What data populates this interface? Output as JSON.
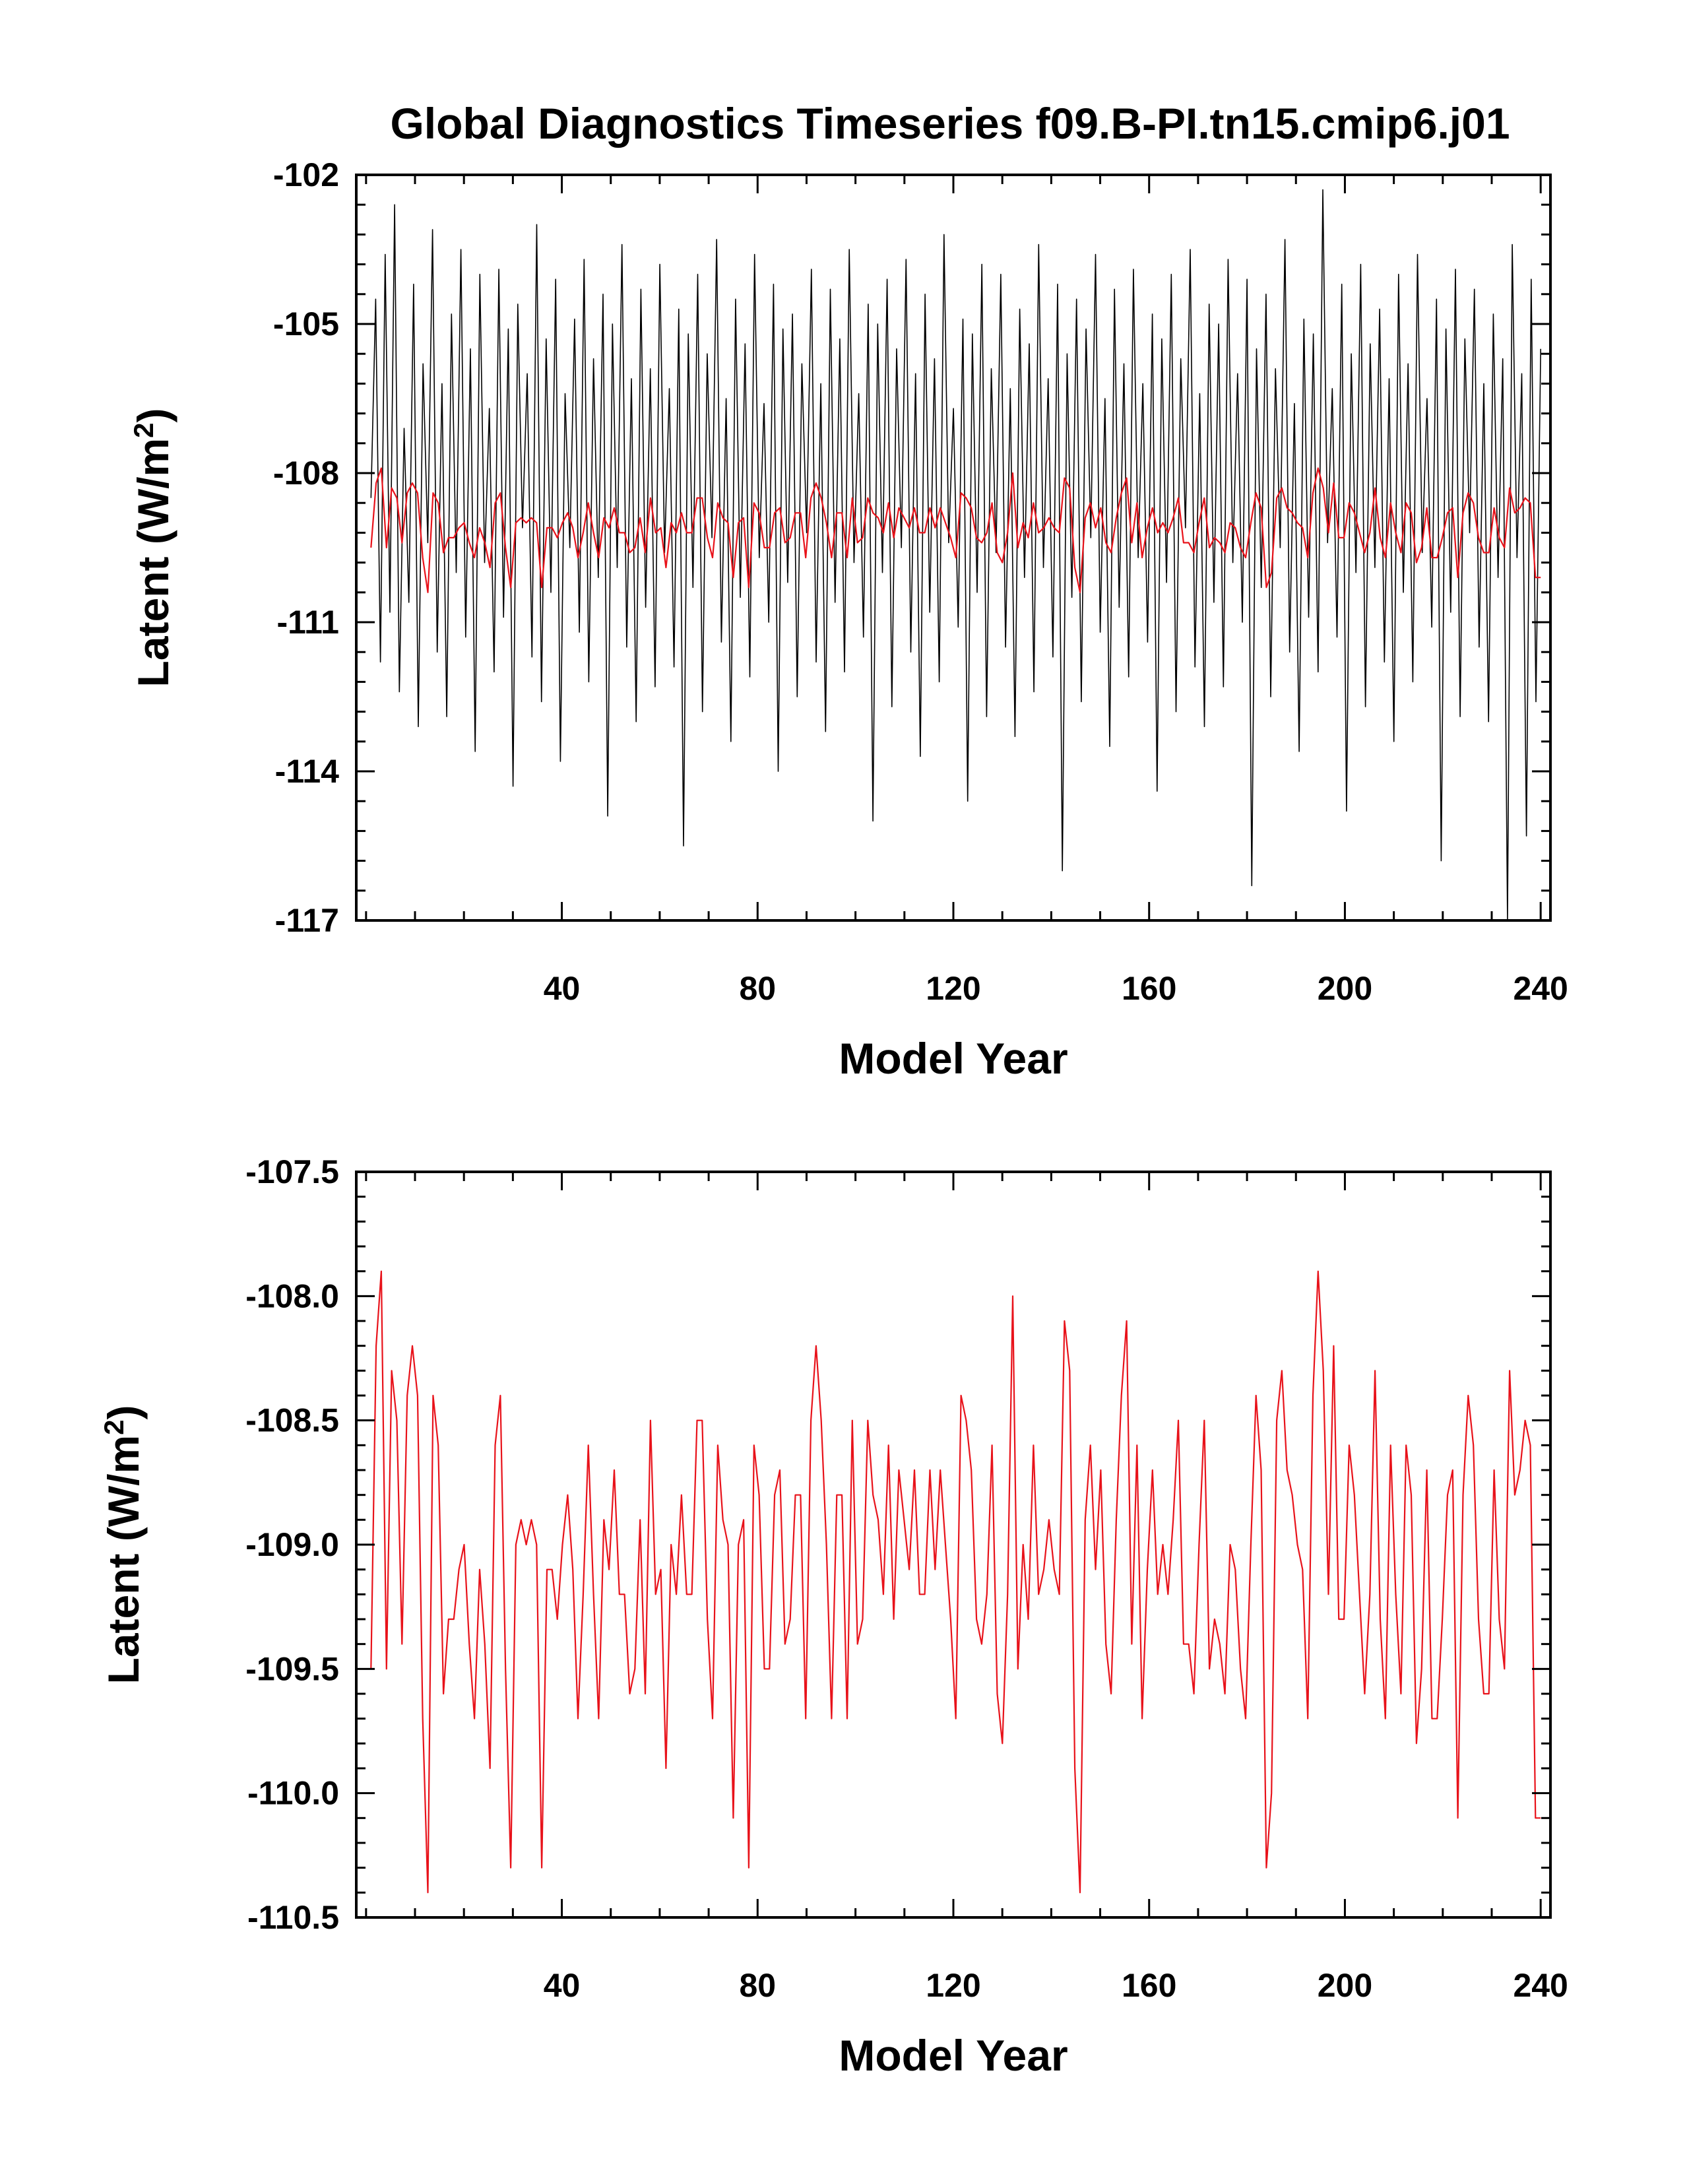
{
  "title": "Global Diagnostics Timeseries f09.B-PI.tn15.cmip6.j01",
  "colors": {
    "monthly": "#000000",
    "annual": "#e8121a"
  },
  "chart_data": [
    {
      "type": "line",
      "panel": "top",
      "xlabel": "Model Year",
      "ylabel_main": "Latent (W/m",
      "ylabel_sup": "2",
      "ylabel_end": ")",
      "xlim": [
        -2,
        242
      ],
      "ylim": [
        -117,
        -102
      ],
      "xticks": [
        40,
        80,
        120,
        160,
        200,
        240
      ],
      "xtick_labels": [
        "40",
        "80",
        "120",
        "160",
        "200",
        "240"
      ],
      "yticks": [
        -117,
        -114,
        -111,
        -108,
        -105,
        -102
      ],
      "ytick_labels": [
        "-117",
        "-114",
        "-111",
        "-108",
        "-105",
        "-102"
      ],
      "series": [
        {
          "color": "#000000",
          "values": [
            -108.5,
            -104.5,
            -111.8,
            -103.6,
            -110.8,
            -102.6,
            -112.4,
            -107.1,
            -110.6,
            -104.2,
            -113.1,
            -105.8,
            -109.4,
            -103.1,
            -111.6,
            -106.2,
            -112.9,
            -104.8,
            -110.0,
            -103.5,
            -111.3,
            -105.5,
            -113.6,
            -104.0,
            -109.8,
            -106.7,
            -112.0,
            -103.9,
            -110.9,
            -105.1,
            -114.3,
            -104.6,
            -109.1,
            -106.0,
            -111.7,
            -103.0,
            -112.6,
            -105.3,
            -110.4,
            -104.1,
            -113.8,
            -106.4,
            -109.5,
            -104.9,
            -111.2,
            -103.7,
            -112.2,
            -105.7,
            -110.1,
            -104.4,
            -114.9,
            -105.0,
            -109.9,
            -103.4,
            -111.5,
            -106.1,
            -113.0,
            -104.3,
            -110.7,
            -105.9,
            -112.3,
            -103.8,
            -109.6,
            -106.3,
            -111.9,
            -104.7,
            -115.5,
            -105.2,
            -110.3,
            -104.0,
            -112.8,
            -105.6,
            -109.3,
            -103.3,
            -111.4,
            -106.5,
            -113.4,
            -104.5,
            -110.5,
            -105.4,
            -112.1,
            -103.6,
            -109.7,
            -106.6,
            -111.0,
            -104.2,
            -114.0,
            -105.1,
            -110.2,
            -104.8,
            -112.5,
            -105.8,
            -109.2,
            -103.9,
            -111.8,
            -106.2,
            -113.2,
            -104.3,
            -110.6,
            -105.3,
            -112.0,
            -103.5,
            -109.8,
            -106.4,
            -111.3,
            -104.6,
            -115.0,
            -105.0,
            -110.0,
            -104.1,
            -112.7,
            -105.5,
            -109.5,
            -103.7,
            -111.6,
            -106.0,
            -113.7,
            -104.4,
            -110.8,
            -105.7,
            -112.2,
            -103.2,
            -109.4,
            -106.7,
            -111.1,
            -104.9,
            -114.6,
            -105.2,
            -110.4,
            -103.8,
            -112.9,
            -105.9,
            -109.6,
            -104.0,
            -111.5,
            -106.3,
            -113.3,
            -104.7,
            -110.1,
            -105.4,
            -112.4,
            -103.4,
            -109.9,
            -106.1,
            -111.7,
            -104.2,
            -116.0,
            -105.6,
            -110.5,
            -104.5,
            -112.6,
            -105.1,
            -109.3,
            -103.6,
            -111.2,
            -106.5,
            -113.5,
            -104.3,
            -110.7,
            -105.8,
            -112.1,
            -103.9,
            -109.7,
            -106.2,
            -111.4,
            -104.8,
            -114.4,
            -105.3,
            -110.2,
            -104.0,
            -112.8,
            -105.7,
            -109.1,
            -103.5,
            -111.9,
            -106.4,
            -113.1,
            -104.6,
            -110.6,
            -105.0,
            -112.3,
            -103.7,
            -109.8,
            -106.0,
            -111.0,
            -104.1,
            -116.3,
            -105.5,
            -110.3,
            -104.4,
            -112.5,
            -105.9,
            -109.5,
            -103.3,
            -111.6,
            -106.6,
            -113.6,
            -104.9,
            -110.9,
            -105.2,
            -112.0,
            -102.3,
            -109.4,
            -106.3,
            -111.3,
            -104.2,
            -114.8,
            -105.6,
            -110.0,
            -103.8,
            -112.7,
            -105.4,
            -109.9,
            -104.7,
            -111.8,
            -106.1,
            -113.4,
            -104.0,
            -110.4,
            -105.8,
            -112.2,
            -103.6,
            -109.6,
            -106.5,
            -111.1,
            -104.5,
            -115.8,
            -105.1,
            -110.8,
            -103.9,
            -112.9,
            -105.3,
            -109.2,
            -104.3,
            -111.5,
            -106.2,
            -113.0,
            -104.8,
            -110.1,
            -105.7,
            -117.0,
            -103.4,
            -109.7,
            -106.0,
            -115.3,
            -104.1,
            -112.6,
            -105.5
          ]
        },
        {
          "color": "#e8121a",
          "values": [
            -109.5,
            -108.2,
            -107.9,
            -109.5,
            -108.3,
            -108.5,
            -109.4,
            -108.4,
            -108.2,
            -108.4,
            -109.7,
            -110.4,
            -108.4,
            -108.6,
            -109.6,
            -109.3,
            -109.3,
            -109.1,
            -109.0,
            -109.4,
            -109.7,
            -109.1,
            -109.4,
            -109.9,
            -108.6,
            -108.4,
            -109.5,
            -110.3,
            -109.0,
            -108.9,
            -109.0,
            -108.9,
            -109.0,
            -110.3,
            -109.1,
            -109.1,
            -109.3,
            -109.0,
            -108.8,
            -109.1,
            -109.7,
            -109.2,
            -108.6,
            -109.2,
            -109.7,
            -108.9,
            -109.1,
            -108.7,
            -109.2,
            -109.2,
            -109.6,
            -109.5,
            -108.9,
            -109.6,
            -108.5,
            -109.2,
            -109.1,
            -109.9,
            -109.0,
            -109.2,
            -108.8,
            -109.2,
            -109.2,
            -108.5,
            -108.5,
            -109.3,
            -109.7,
            -108.6,
            -108.9,
            -109.0,
            -110.1,
            -109.0,
            -108.9,
            -110.3,
            -108.6,
            -108.8,
            -109.5,
            -109.5,
            -108.8,
            -108.7,
            -109.4,
            -109.3,
            -108.8,
            -108.8,
            -109.7,
            -108.5,
            -108.2,
            -108.5,
            -109.0,
            -109.7,
            -108.8,
            -108.8,
            -109.7,
            -108.5,
            -109.4,
            -109.3,
            -108.5,
            -108.8,
            -108.9,
            -109.2,
            -108.6,
            -109.3,
            -108.7,
            -108.9,
            -109.1,
            -108.7,
            -109.2,
            -109.2,
            -108.7,
            -109.1,
            -108.7,
            -109.0,
            -109.3,
            -109.7,
            -108.4,
            -108.5,
            -108.7,
            -109.3,
            -109.4,
            -109.2,
            -108.6,
            -109.6,
            -109.8,
            -109.2,
            -108.0,
            -109.5,
            -109.0,
            -109.3,
            -108.6,
            -109.2,
            -109.1,
            -108.9,
            -109.1,
            -109.2,
            -108.1,
            -108.3,
            -109.9,
            -110.4,
            -108.9,
            -108.6,
            -109.1,
            -108.7,
            -109.4,
            -109.6,
            -108.9,
            -108.4,
            -108.1,
            -109.4,
            -108.6,
            -109.7,
            -109.1,
            -108.7,
            -109.2,
            -109.0,
            -109.2,
            -108.9,
            -108.5,
            -109.4,
            -109.4,
            -109.6,
            -109.0,
            -108.5,
            -109.5,
            -109.3,
            -109.4,
            -109.6,
            -109.0,
            -109.1,
            -109.5,
            -109.7,
            -109.0,
            -108.4,
            -108.7,
            -110.3,
            -110.0,
            -108.5,
            -108.3,
            -108.7,
            -108.8,
            -109.0,
            -109.1,
            -109.7,
            -108.4,
            -107.9,
            -108.3,
            -109.2,
            -108.2,
            -109.3,
            -109.3,
            -108.6,
            -108.8,
            -109.2,
            -109.6,
            -109.2,
            -108.3,
            -109.3,
            -109.7,
            -108.6,
            -109.2,
            -109.6,
            -108.6,
            -108.8,
            -109.8,
            -109.5,
            -108.7,
            -109.7,
            -109.7,
            -109.3,
            -108.8,
            -108.7,
            -110.1,
            -108.8,
            -108.4,
            -108.6,
            -109.3,
            -109.6,
            -109.6,
            -108.7,
            -109.3,
            -109.5,
            -108.3,
            -108.8,
            -108.7,
            -108.5,
            -108.6,
            -110.1,
            -110.1
          ]
        }
      ]
    },
    {
      "type": "line",
      "panel": "bottom",
      "xlabel": "Model Year",
      "ylabel_main": "Latent (W/m",
      "ylabel_sup": "2",
      "ylabel_end": ")",
      "xlim": [
        -2,
        242
      ],
      "ylim": [
        -110.5,
        -107.5
      ],
      "xticks": [
        40,
        80,
        120,
        160,
        200,
        240
      ],
      "xtick_labels": [
        "40",
        "80",
        "120",
        "160",
        "200",
        "240"
      ],
      "yticks": [
        -110.5,
        -110.0,
        -109.5,
        -109.0,
        -108.5,
        -108.0,
        -107.5
      ],
      "ytick_labels": [
        "-110.5",
        "-110.0",
        "-109.5",
        "-109.0",
        "-108.5",
        "-108.0",
        "-107.5"
      ],
      "series": [
        {
          "color": "#e8121a",
          "values": [
            -109.5,
            -108.2,
            -107.9,
            -109.5,
            -108.3,
            -108.5,
            -109.4,
            -108.4,
            -108.2,
            -108.4,
            -109.7,
            -110.4,
            -108.4,
            -108.6,
            -109.6,
            -109.3,
            -109.3,
            -109.1,
            -109.0,
            -109.4,
            -109.7,
            -109.1,
            -109.4,
            -109.9,
            -108.6,
            -108.4,
            -109.5,
            -110.3,
            -109.0,
            -108.9,
            -109.0,
            -108.9,
            -109.0,
            -110.3,
            -109.1,
            -109.1,
            -109.3,
            -109.0,
            -108.8,
            -109.1,
            -109.7,
            -109.2,
            -108.6,
            -109.2,
            -109.7,
            -108.9,
            -109.1,
            -108.7,
            -109.2,
            -109.2,
            -109.6,
            -109.5,
            -108.9,
            -109.6,
            -108.5,
            -109.2,
            -109.1,
            -109.9,
            -109.0,
            -109.2,
            -108.8,
            -109.2,
            -109.2,
            -108.5,
            -108.5,
            -109.3,
            -109.7,
            -108.6,
            -108.9,
            -109.0,
            -110.1,
            -109.0,
            -108.9,
            -110.3,
            -108.6,
            -108.8,
            -109.5,
            -109.5,
            -108.8,
            -108.7,
            -109.4,
            -109.3,
            -108.8,
            -108.8,
            -109.7,
            -108.5,
            -108.2,
            -108.5,
            -109.0,
            -109.7,
            -108.8,
            -108.8,
            -109.7,
            -108.5,
            -109.4,
            -109.3,
            -108.5,
            -108.8,
            -108.9,
            -109.2,
            -108.6,
            -109.3,
            -108.7,
            -108.9,
            -109.1,
            -108.7,
            -109.2,
            -109.2,
            -108.7,
            -109.1,
            -108.7,
            -109.0,
            -109.3,
            -109.7,
            -108.4,
            -108.5,
            -108.7,
            -109.3,
            -109.4,
            -109.2,
            -108.6,
            -109.6,
            -109.8,
            -109.2,
            -108.0,
            -109.5,
            -109.0,
            -109.3,
            -108.6,
            -109.2,
            -109.1,
            -108.9,
            -109.1,
            -109.2,
            -108.1,
            -108.3,
            -109.9,
            -110.4,
            -108.9,
            -108.6,
            -109.1,
            -108.7,
            -109.4,
            -109.6,
            -108.9,
            -108.4,
            -108.1,
            -109.4,
            -108.6,
            -109.7,
            -109.1,
            -108.7,
            -109.2,
            -109.0,
            -109.2,
            -108.9,
            -108.5,
            -109.4,
            -109.4,
            -109.6,
            -109.0,
            -108.5,
            -109.5,
            -109.3,
            -109.4,
            -109.6,
            -109.0,
            -109.1,
            -109.5,
            -109.7,
            -109.0,
            -108.4,
            -108.7,
            -110.3,
            -110.0,
            -108.5,
            -108.3,
            -108.7,
            -108.8,
            -109.0,
            -109.1,
            -109.7,
            -108.4,
            -107.9,
            -108.3,
            -109.2,
            -108.2,
            -109.3,
            -109.3,
            -108.6,
            -108.8,
            -109.2,
            -109.6,
            -109.2,
            -108.3,
            -109.3,
            -109.7,
            -108.6,
            -109.2,
            -109.6,
            -108.6,
            -108.8,
            -109.8,
            -109.5,
            -108.7,
            -109.7,
            -109.7,
            -109.3,
            -108.8,
            -108.7,
            -110.1,
            -108.8,
            -108.4,
            -108.6,
            -109.3,
            -109.6,
            -109.6,
            -108.7,
            -109.3,
            -109.5,
            -108.3,
            -108.8,
            -108.7,
            -108.5,
            -108.6,
            -110.1,
            -110.1
          ]
        }
      ]
    }
  ]
}
